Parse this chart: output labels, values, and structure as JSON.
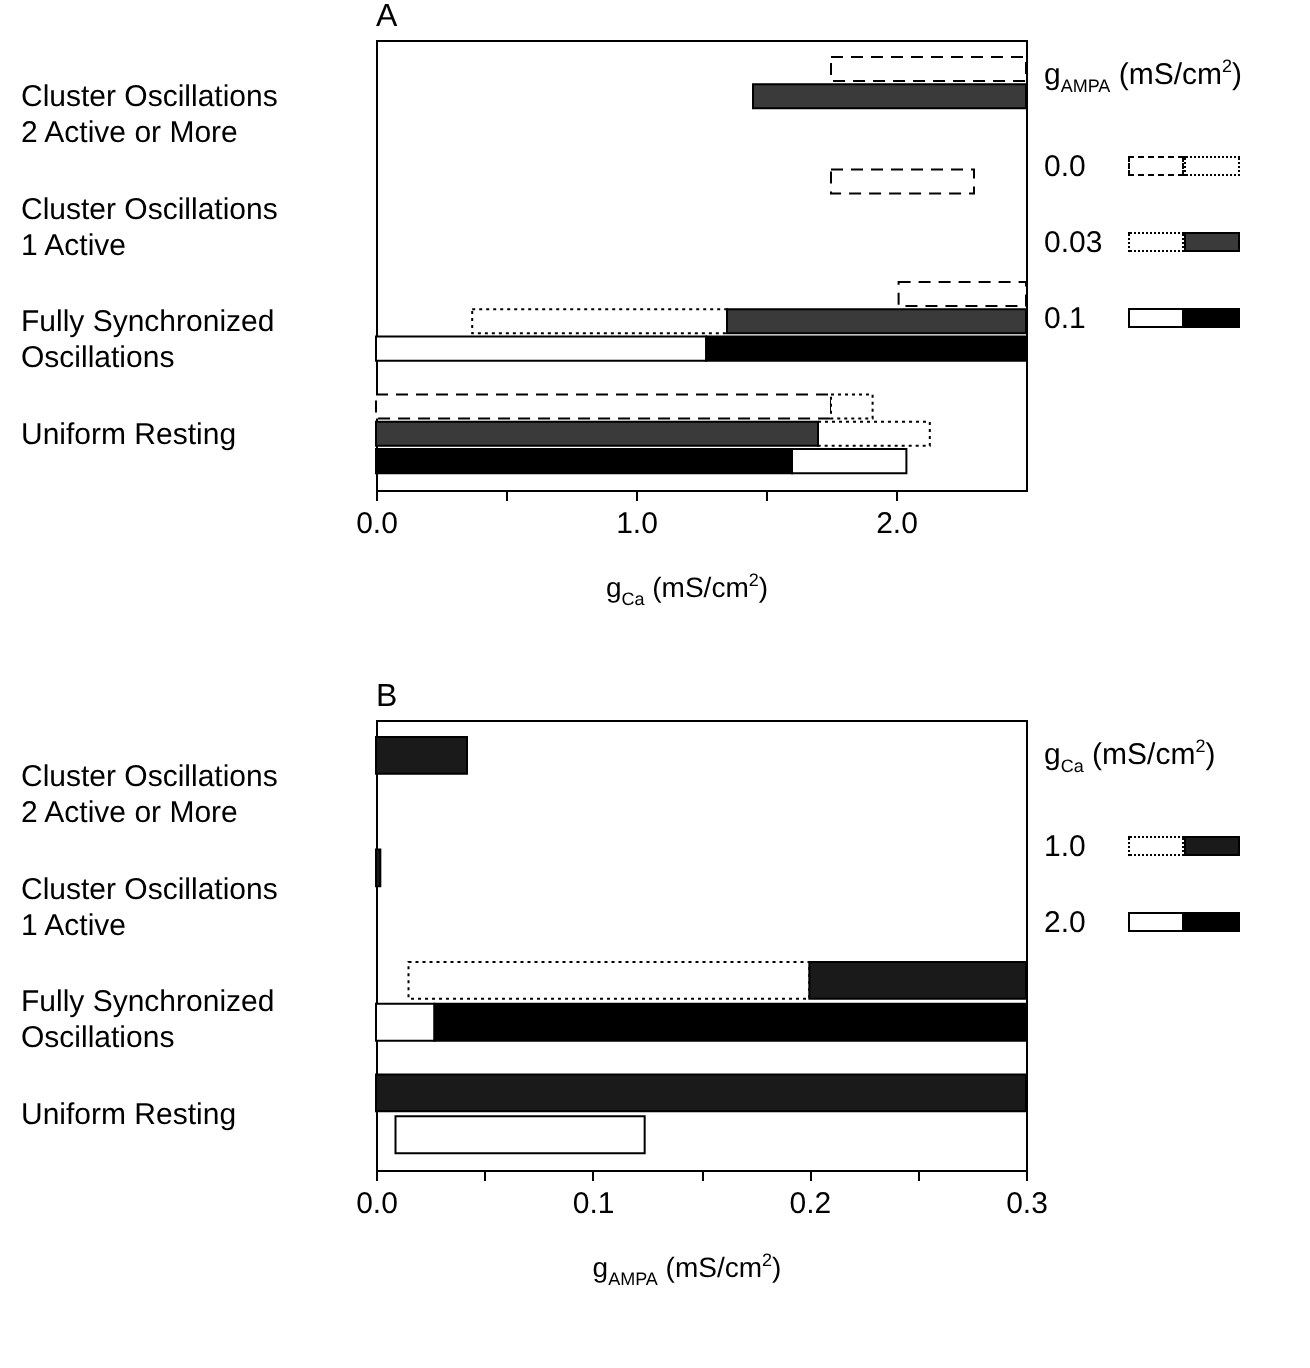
{
  "chart_data": [
    {
      "type": "bar",
      "title": "A",
      "orientation": "horizontal",
      "categories": [
        "Cluster Oscillations\n2 Active or More",
        "Cluster Oscillations\n1 Active",
        "Fully Synchronized\nOscillations",
        "Uniform Resting"
      ],
      "xlabel": "g$_{Ca}$ (mS/cm$^{2}$)",
      "legend_title": "g$_{AMPA}$ (mS/cm$^{2}$)",
      "legend": "top right",
      "xlim": [
        0,
        2.5
      ],
      "xticks": [
        {
          "value": 0,
          "label": "0.0"
        },
        {
          "value": 0.5,
          "label": null
        },
        {
          "value": 1,
          "label": "1.0"
        },
        {
          "value": 1.5,
          "label": null
        },
        {
          "value": 2,
          "label": "2.0"
        }
      ],
      "series": [
        {
          "name": "0.0",
          "color": "#ffffff",
          "line_style": "dashed",
          "base": [
            1.75,
            1.75,
            2.01,
            0
          ],
          "values": [
            0.75,
            0.55,
            0.49,
            1.75
          ]
        },
        {
          "color": "#ffffff",
          "line_style": "dotted",
          "base": [
            null,
            null,
            null,
            1.75
          ],
          "values": [
            null,
            null,
            null,
            0.16
          ]
        },
        {
          "name": "0.03",
          "color": "#ffffff",
          "line_style": "dotted",
          "base": [
            null,
            null,
            0.37,
            1.7
          ],
          "values": [
            null,
            null,
            0.98,
            0.43
          ]
        },
        {
          "color": "#3a3a3a",
          "line_style": "solid",
          "base": [
            1.45,
            null,
            1.35,
            0
          ],
          "values": [
            1.05,
            null,
            1.15,
            1.7
          ]
        },
        {
          "name": "0.1",
          "color": "#ffffff",
          "line_style": "solid",
          "base": [
            null,
            null,
            0,
            1.6
          ],
          "values": [
            null,
            null,
            1.27,
            0.44
          ]
        },
        {
          "color": "#000000",
          "line_style": "solid",
          "base": [
            null,
            null,
            1.27,
            0
          ],
          "values": [
            null,
            null,
            1.23,
            1.6
          ]
        }
      ]
    },
    {
      "type": "bar",
      "title": "B",
      "orientation": "horizontal",
      "categories": [
        "Cluster Oscillations\n2 Active or More",
        "Cluster Oscillations\n1 Active",
        "Fully Synchronized\nOscillations",
        "Uniform Resting"
      ],
      "xlabel": "g$_{AMPA}$ (mS/cm$^{2}$)",
      "legend_title": "g$_{Ca}$ (mS/cm$^{2}$)",
      "legend": "top right",
      "xlim": [
        0,
        0.3
      ],
      "xticks": [
        {
          "value": 0,
          "label": "0.0"
        },
        {
          "value": 0.05,
          "label": null
        },
        {
          "value": 0.1,
          "label": "0.1"
        },
        {
          "value": 0.15,
          "label": null
        },
        {
          "value": 0.2,
          "label": "0.2"
        },
        {
          "value": 0.25,
          "label": null
        },
        {
          "value": 0.3,
          "label": "0.3"
        }
      ],
      "series": [
        {
          "name": "1.0",
          "color": "#ffffff",
          "line_style": "dotted",
          "base": [
            null,
            null,
            0.015,
            null
          ],
          "values": [
            null,
            null,
            0.185,
            null
          ]
        },
        {
          "color": "#1a1a1a",
          "line_style": "solid",
          "base": [
            0,
            0,
            0.2,
            0
          ],
          "values": [
            0.042,
            0.002,
            0.1,
            0.3
          ]
        },
        {
          "name": "2.0",
          "color": "#ffffff",
          "line_style": "solid",
          "base": [
            null,
            null,
            0,
            0.009
          ],
          "values": [
            null,
            null,
            0.027,
            0.115
          ]
        },
        {
          "color": "#000000",
          "line_style": "solid",
          "base": [
            null,
            null,
            0.027,
            null
          ],
          "values": [
            null,
            null,
            0.273,
            null
          ]
        }
      ]
    }
  ]
}
